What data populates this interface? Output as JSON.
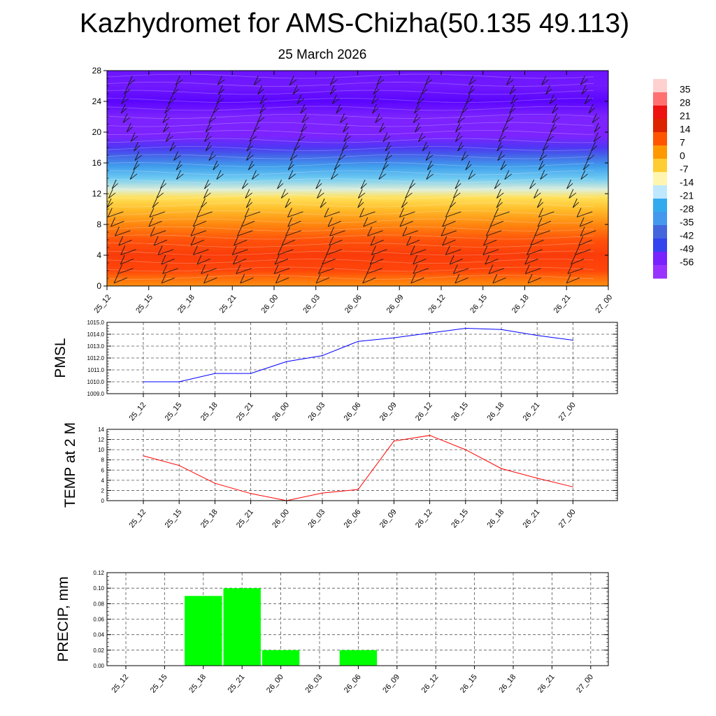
{
  "header": {
    "title": "Kazhydromet for AMS-Chizha(50.135 49.113)",
    "subtitle": "25 March 2026"
  },
  "colors": {
    "pmsl_line": "#0000ff",
    "temp_line": "#ff0000",
    "precip_bar": "#00ff00",
    "grid": "#555555"
  },
  "chart_data": [
    {
      "type": "heatmap",
      "title": "",
      "xlabel": "",
      "ylabel": "",
      "x": [
        "25_12",
        "25_15",
        "25_18",
        "25_21",
        "26_00",
        "26_03",
        "26_06",
        "26_09",
        "26_12",
        "26_15",
        "26_18",
        "26_21",
        "27_00"
      ],
      "y_ticks": [
        0,
        4,
        8,
        12,
        16,
        20,
        24,
        28
      ],
      "ylim": [
        0,
        28
      ],
      "field_profile": [
        {
          "y": 0,
          "value": 10
        },
        {
          "y": 1,
          "value": 14
        },
        {
          "y": 2,
          "value": 20
        },
        {
          "y": 4,
          "value": 22
        },
        {
          "y": 6,
          "value": 18
        },
        {
          "y": 8,
          "value": 11
        },
        {
          "y": 10,
          "value": 2
        },
        {
          "y": 11.5,
          "value": -6
        },
        {
          "y": 12.5,
          "value": -14
        },
        {
          "y": 14,
          "value": -22
        },
        {
          "y": 15.5,
          "value": -30
        },
        {
          "y": 17,
          "value": -42
        },
        {
          "y": 18,
          "value": -50
        },
        {
          "y": 19.5,
          "value": -57
        },
        {
          "y": 22,
          "value": -57
        },
        {
          "y": 24,
          "value": -63
        },
        {
          "y": 26,
          "value": -59
        },
        {
          "y": 28,
          "value": -60
        }
      ],
      "colorbar": {
        "labels": [
          "35",
          "28",
          "21",
          "14",
          "7",
          "0",
          "-7",
          "-14",
          "-21",
          "-28",
          "-35",
          "-42",
          "-49",
          "-56"
        ],
        "colors": [
          "#ffd0d0",
          "#ff7070",
          "#ee1111",
          "#dd2200",
          "#ff5500",
          "#ff9900",
          "#ffcc33",
          "#fff5b0",
          "#bfe8ff",
          "#33aaee",
          "#4499ee",
          "#4466dd",
          "#3344ee",
          "#7722ff",
          "#9933ff"
        ]
      },
      "overlay": "wind barbs"
    },
    {
      "type": "line",
      "ylabel": "PMSL",
      "categories": [
        "25_12",
        "25_15",
        "25_18",
        "25_21",
        "26_00",
        "26_03",
        "26_06",
        "26_09",
        "26_12",
        "26_15",
        "26_18",
        "26_21",
        "27_00"
      ],
      "values": [
        1010.0,
        1010.0,
        1010.7,
        1010.7,
        1011.7,
        1012.2,
        1013.4,
        1013.7,
        1014.1,
        1014.5,
        1014.4,
        1013.9,
        1013.5
      ],
      "y_ticks": [
        "1009.0",
        "1010.0",
        "1011.0",
        "1012.0",
        "1013.0",
        "1014.0",
        "1015.0"
      ],
      "ylim": [
        1009,
        1015
      ],
      "grid": true
    },
    {
      "type": "line",
      "ylabel": "TEMP at 2 M",
      "categories": [
        "25_12",
        "25_15",
        "25_18",
        "25_21",
        "26_00",
        "26_03",
        "26_06",
        "26_09",
        "26_12",
        "26_15",
        "26_18",
        "26_21",
        "27_00"
      ],
      "values": [
        8.8,
        6.9,
        3.4,
        1.4,
        0.0,
        1.5,
        2.2,
        11.7,
        12.8,
        10.0,
        6.3,
        4.4,
        2.7
      ],
      "y_ticks": [
        "0",
        "2",
        "4",
        "6",
        "8",
        "10",
        "12",
        "14"
      ],
      "ylim": [
        0,
        14
      ],
      "grid": true
    },
    {
      "type": "bar",
      "ylabel": "PRECIP, mm",
      "categories": [
        "25_12",
        "25_15",
        "25_18",
        "25_21",
        "26_00",
        "26_03",
        "26_06",
        "26_09",
        "26_12",
        "26_15",
        "26_18",
        "26_21",
        "27_00"
      ],
      "values": [
        0,
        0,
        0.09,
        0.1,
        0.02,
        0,
        0.02,
        0,
        0,
        0,
        0,
        0,
        0
      ],
      "y_ticks": [
        "0.00",
        "0.02",
        "0.04",
        "0.06",
        "0.08",
        "0.10",
        "0.12"
      ],
      "ylim": [
        0,
        0.12
      ],
      "grid": true
    }
  ]
}
